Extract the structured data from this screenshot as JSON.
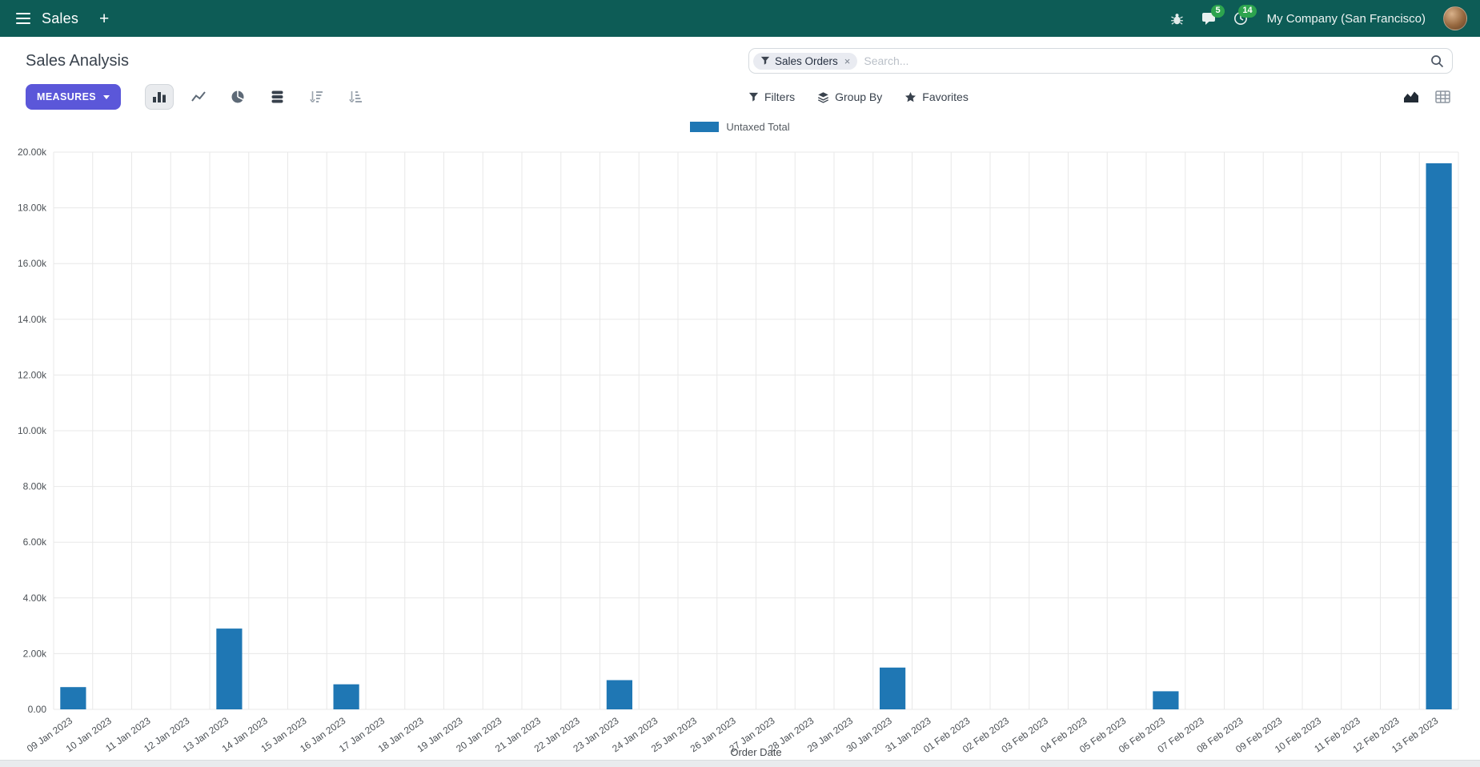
{
  "navbar": {
    "app_name": "Sales",
    "plus_label": "+",
    "messages_badge": "5",
    "activities_badge": "14",
    "company": "My Company (San Francisco)"
  },
  "control_panel": {
    "title": "Sales Analysis",
    "search": {
      "facet": "Sales Orders",
      "facet_remove": "×",
      "placeholder": "Search..."
    },
    "measures_label": "MEASURES",
    "filters_label": "Filters",
    "group_by_label": "Group By",
    "favorites_label": "Favorites"
  },
  "icons": {
    "apps_menu": "hamburger",
    "bug": "bug",
    "messages": "chat-bubble",
    "activities": "clock",
    "search": "magnifier",
    "facet": "funnel",
    "filters": "funnel",
    "group_by": "layers",
    "favorites": "star",
    "bar_chart": "bars",
    "line_chart": "line",
    "pie_chart": "pie",
    "stacked": "database",
    "sort_desc": "arrow-down-bars",
    "sort_asc": "arrow-up-bars",
    "graph_view": "area-chart",
    "pivot_view": "grid-table"
  },
  "colors": {
    "navbar_bg": "#0d5c56",
    "primary_button": "#5b57d9",
    "badge_green": "#2da44e",
    "bar_blue": "#1f77b4"
  },
  "chart_data": {
    "type": "bar",
    "series_name": "Untaxed Total",
    "xlabel": "Order Date",
    "ylabel": "",
    "ylim": [
      0,
      20000
    ],
    "ytick_step": 2000,
    "ytick_labels": [
      "0.00",
      "2.00k",
      "4.00k",
      "6.00k",
      "8.00k",
      "10.00k",
      "12.00k",
      "14.00k",
      "16.00k",
      "18.00k",
      "20.00k"
    ],
    "grid": true,
    "legend_position": "top",
    "bar_color": "#1f77b4",
    "categories": [
      "09 Jan 2023",
      "10 Jan 2023",
      "11 Jan 2023",
      "12 Jan 2023",
      "13 Jan 2023",
      "14 Jan 2023",
      "15 Jan 2023",
      "16 Jan 2023",
      "17 Jan 2023",
      "18 Jan 2023",
      "19 Jan 2023",
      "20 Jan 2023",
      "21 Jan 2023",
      "22 Jan 2023",
      "23 Jan 2023",
      "24 Jan 2023",
      "25 Jan 2023",
      "26 Jan 2023",
      "27 Jan 2023",
      "28 Jan 2023",
      "29 Jan 2023",
      "30 Jan 2023",
      "31 Jan 2023",
      "01 Feb 2023",
      "02 Feb 2023",
      "03 Feb 2023",
      "04 Feb 2023",
      "05 Feb 2023",
      "06 Feb 2023",
      "07 Feb 2023",
      "08 Feb 2023",
      "09 Feb 2023",
      "10 Feb 2023",
      "11 Feb 2023",
      "12 Feb 2023",
      "13 Feb 2023"
    ],
    "values": [
      800,
      0,
      0,
      0,
      2900,
      0,
      0,
      900,
      0,
      0,
      0,
      0,
      0,
      0,
      1050,
      0,
      0,
      0,
      0,
      0,
      0,
      1500,
      0,
      0,
      0,
      0,
      0,
      0,
      650,
      0,
      0,
      0,
      0,
      0,
      0,
      19600
    ]
  }
}
